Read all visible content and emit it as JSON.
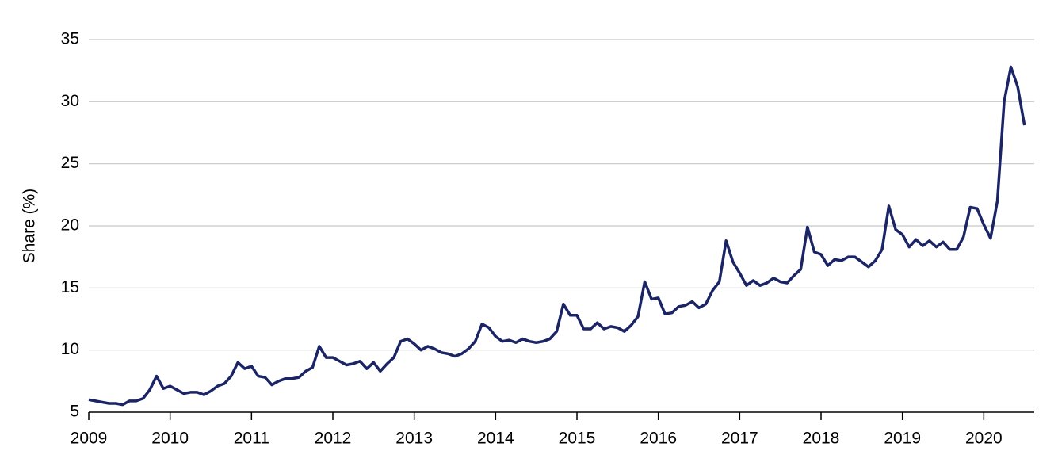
{
  "chart_data": {
    "type": "line",
    "y_label": "Share (%)",
    "x": [
      2009,
      2009.083,
      2009.167,
      2009.25,
      2009.333,
      2009.417,
      2009.5,
      2009.583,
      2009.667,
      2009.75,
      2009.833,
      2009.917,
      2010,
      2010.083,
      2010.167,
      2010.25,
      2010.333,
      2010.417,
      2010.5,
      2010.583,
      2010.667,
      2010.75,
      2010.833,
      2010.917,
      2011,
      2011.083,
      2011.167,
      2011.25,
      2011.333,
      2011.417,
      2011.5,
      2011.583,
      2011.667,
      2011.75,
      2011.833,
      2011.917,
      2012,
      2012.083,
      2012.167,
      2012.25,
      2012.333,
      2012.417,
      2012.5,
      2012.583,
      2012.667,
      2012.75,
      2012.833,
      2012.917,
      2013,
      2013.083,
      2013.167,
      2013.25,
      2013.333,
      2013.417,
      2013.5,
      2013.583,
      2013.667,
      2013.75,
      2013.833,
      2013.917,
      2014,
      2014.083,
      2014.167,
      2014.25,
      2014.333,
      2014.417,
      2014.5,
      2014.583,
      2014.667,
      2014.75,
      2014.833,
      2014.917,
      2015,
      2015.083,
      2015.167,
      2015.25,
      2015.333,
      2015.417,
      2015.5,
      2015.583,
      2015.667,
      2015.75,
      2015.833,
      2015.917,
      2016,
      2016.083,
      2016.167,
      2016.25,
      2016.333,
      2016.417,
      2016.5,
      2016.583,
      2016.667,
      2016.75,
      2016.833,
      2016.917,
      2017,
      2017.083,
      2017.167,
      2017.25,
      2017.333,
      2017.417,
      2017.5,
      2017.583,
      2017.667,
      2017.75,
      2017.833,
      2017.917,
      2018,
      2018.083,
      2018.167,
      2018.25,
      2018.333,
      2018.417,
      2018.5,
      2018.583,
      2018.667,
      2018.75,
      2018.833,
      2018.917,
      2019,
      2019.083,
      2019.167,
      2019.25,
      2019.333,
      2019.417,
      2019.5,
      2019.583,
      2019.667,
      2019.75,
      2019.833,
      2019.917,
      2020,
      2020.083,
      2020.167,
      2020.25,
      2020.333,
      2020.417,
      2020.5
    ],
    "series": [
      {
        "color": "#1b2566",
        "values": [
          6.0,
          5.9,
          5.8,
          5.7,
          5.7,
          5.6,
          5.9,
          5.9,
          6.1,
          6.8,
          7.9,
          6.9,
          7.1,
          6.8,
          6.5,
          6.6,
          6.6,
          6.4,
          6.7,
          7.1,
          7.3,
          7.9,
          9.0,
          8.5,
          8.7,
          7.9,
          7.8,
          7.2,
          7.5,
          7.7,
          7.7,
          7.8,
          8.3,
          8.6,
          10.3,
          9.4,
          9.4,
          9.1,
          8.8,
          8.9,
          9.1,
          8.5,
          9.0,
          8.3,
          8.9,
          9.4,
          10.7,
          10.9,
          10.5,
          10.0,
          10.3,
          10.1,
          9.8,
          9.7,
          9.5,
          9.7,
          10.1,
          10.7,
          12.1,
          11.8,
          11.1,
          10.7,
          10.8,
          10.6,
          10.9,
          10.7,
          10.6,
          10.7,
          10.9,
          11.5,
          13.7,
          12.8,
          12.8,
          11.7,
          11.7,
          12.2,
          11.7,
          11.9,
          11.8,
          11.5,
          12.0,
          12.7,
          15.5,
          14.1,
          14.2,
          12.9,
          13.0,
          13.5,
          13.6,
          13.9,
          13.4,
          13.7,
          14.8,
          15.5,
          18.8,
          17.1,
          16.2,
          15.2,
          15.6,
          15.2,
          15.4,
          15.8,
          15.5,
          15.4,
          16.0,
          16.5,
          19.9,
          17.9,
          17.7,
          16.8,
          17.3,
          17.2,
          17.5,
          17.5,
          17.1,
          16.7,
          17.2,
          18.1,
          21.6,
          19.7,
          19.3,
          18.3,
          18.9,
          18.4,
          18.8,
          18.3,
          18.7,
          18.1,
          18.1,
          19.1,
          21.5,
          21.4,
          20.1,
          19.0,
          22.0,
          30.0,
          32.8,
          31.2,
          28.1
        ]
      }
    ],
    "xlim": [
      2009,
      2020.62
    ],
    "xticks": [
      2009,
      2010,
      2011,
      2012,
      2013,
      2014,
      2015,
      2016,
      2017,
      2018,
      2019,
      2020
    ],
    "ylim": [
      5,
      35
    ],
    "yticks": [
      5,
      10,
      15,
      20,
      25,
      30,
      35
    ],
    "grid": true
  }
}
